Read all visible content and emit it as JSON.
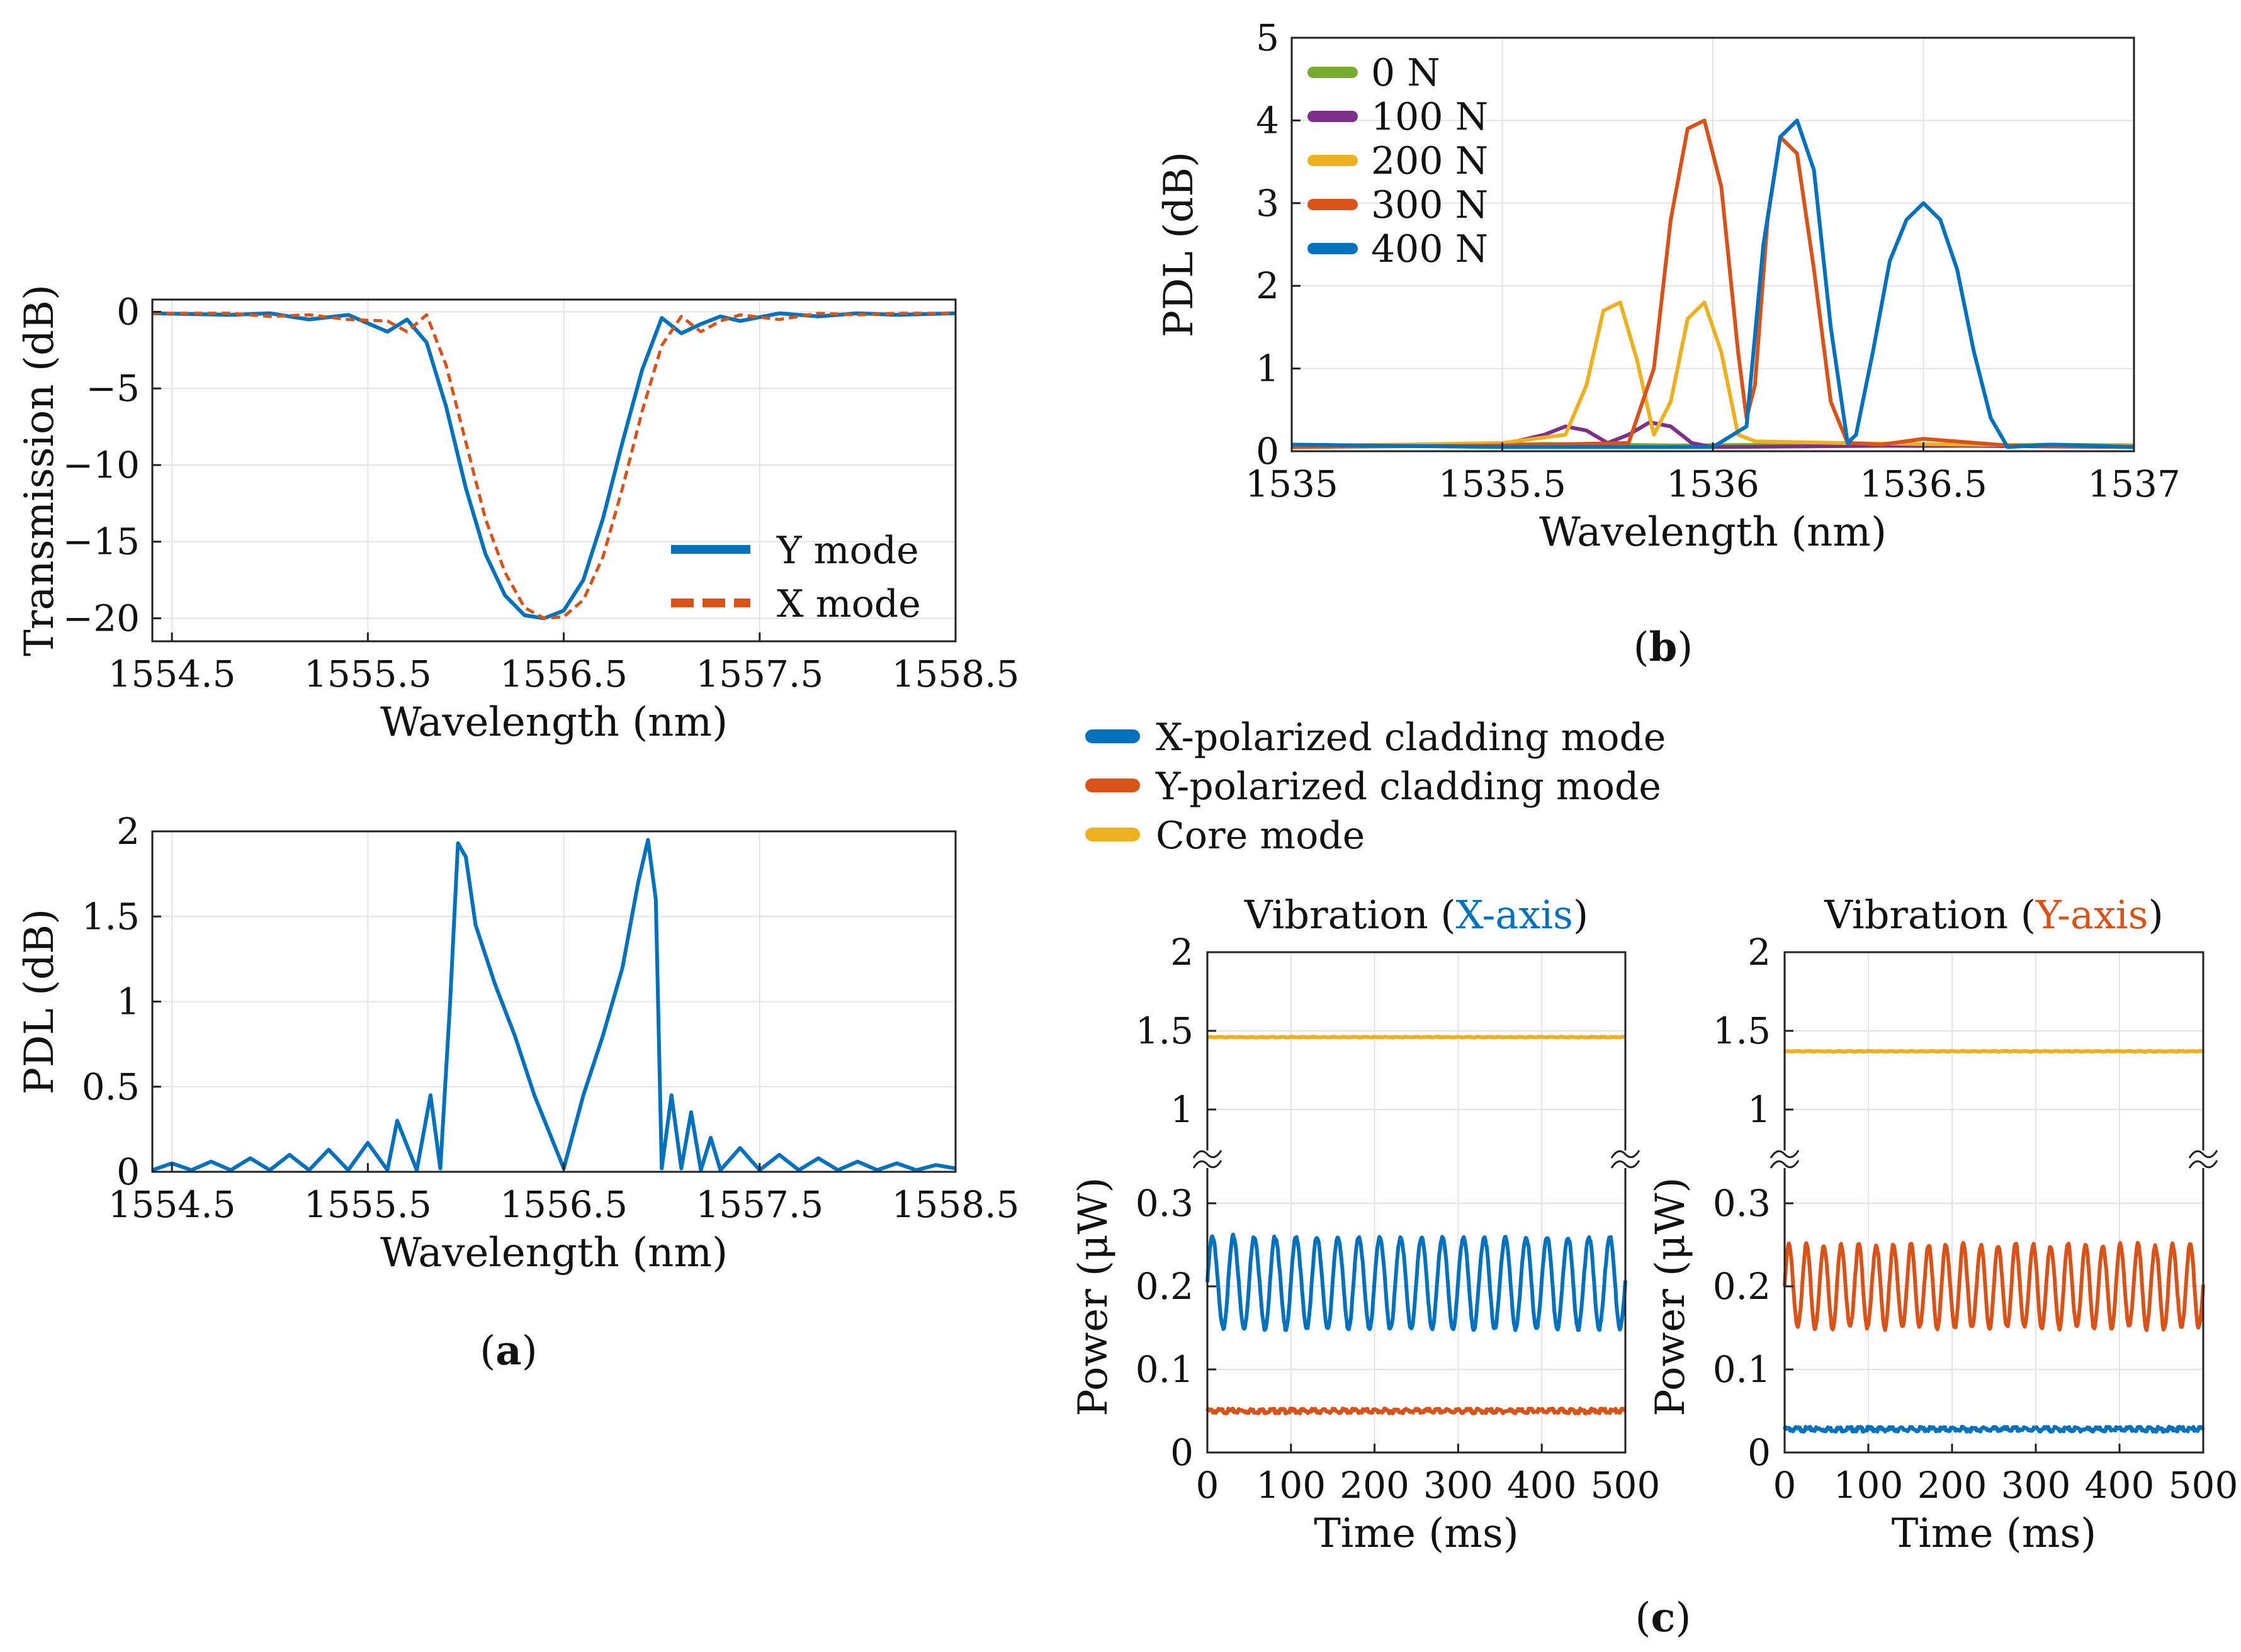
{
  "chart_data": [
    {
      "id": "a_top",
      "type": "line",
      "xlabel": "Wavelength (nm)",
      "ylabel": "Transmission (dB)",
      "xlim": [
        1554.4,
        1558.5
      ],
      "ylim": [
        -21.5,
        0.8
      ],
      "xticks": [
        1554.5,
        1555.5,
        1556.5,
        1557.5,
        1558.5
      ],
      "xtick_labels": [
        "1554.5",
        "1555.5",
        "1556.5",
        "1557.5",
        "1558.5"
      ],
      "yticks": [
        0,
        -5,
        -10,
        -15,
        -20
      ],
      "ytick_labels": [
        "0",
        "−5",
        "−10",
        "−15",
        "−20"
      ],
      "grid": true,
      "legend": "bottom-right",
      "series": [
        {
          "name": "Y mode",
          "color": "#0072BD",
          "dash": "solid",
          "x": [
            1554.4,
            1554.8,
            1555.0,
            1555.2,
            1555.4,
            1555.6,
            1555.7,
            1555.8,
            1555.9,
            1556.0,
            1556.1,
            1556.2,
            1556.3,
            1556.4,
            1556.5,
            1556.6,
            1556.7,
            1556.8,
            1556.9,
            1557.0,
            1557.1,
            1557.2,
            1557.3,
            1557.4,
            1557.6,
            1557.8,
            1558.0,
            1558.2,
            1558.5
          ],
          "y": [
            -0.1,
            -0.2,
            -0.1,
            -0.5,
            -0.2,
            -1.3,
            -0.5,
            -2.0,
            -6.2,
            -11.5,
            -15.8,
            -18.5,
            -19.8,
            -20.0,
            -19.5,
            -17.5,
            -13.5,
            -8.5,
            -3.8,
            -0.4,
            -1.4,
            -0.8,
            -0.3,
            -0.6,
            -0.1,
            -0.3,
            -0.1,
            -0.2,
            -0.1
          ]
        },
        {
          "name": "X mode",
          "color": "#D95319",
          "dash": "dashed",
          "x": [
            1554.4,
            1554.8,
            1555.0,
            1555.2,
            1555.4,
            1555.6,
            1555.7,
            1555.8,
            1555.9,
            1556.0,
            1556.1,
            1556.2,
            1556.3,
            1556.4,
            1556.5,
            1556.6,
            1556.7,
            1556.8,
            1556.9,
            1557.0,
            1557.1,
            1557.2,
            1557.3,
            1557.4,
            1557.6,
            1557.8,
            1558.0,
            1558.2,
            1558.5
          ],
          "y": [
            -0.1,
            -0.1,
            -0.3,
            -0.2,
            -0.5,
            -0.6,
            -1.3,
            -0.2,
            -3.5,
            -8.5,
            -13.5,
            -17.0,
            -19.3,
            -20.0,
            -19.9,
            -18.8,
            -16.0,
            -11.5,
            -6.5,
            -2.2,
            -0.3,
            -1.3,
            -0.6,
            -0.2,
            -0.5,
            -0.1,
            -0.2,
            -0.1,
            -0.1
          ]
        }
      ]
    },
    {
      "id": "a_bottom",
      "type": "line",
      "xlabel": "Wavelength (nm)",
      "ylabel": "PDL (dB)",
      "xlim": [
        1554.4,
        1558.5
      ],
      "ylim": [
        0,
        2
      ],
      "xticks": [
        1554.5,
        1555.5,
        1556.5,
        1557.5,
        1558.5
      ],
      "xtick_labels": [
        "1554.5",
        "1555.5",
        "1556.5",
        "1557.5",
        "1558.5"
      ],
      "yticks": [
        0,
        0.5,
        1,
        1.5,
        2
      ],
      "ytick_labels": [
        "0",
        "0.5",
        "1",
        "1.5",
        "2"
      ],
      "grid": true,
      "series": [
        {
          "name": "",
          "color": "#0072BD",
          "dash": "solid",
          "x": [
            1554.4,
            1554.5,
            1554.6,
            1554.7,
            1554.8,
            1554.9,
            1555.0,
            1555.1,
            1555.2,
            1555.3,
            1555.4,
            1555.5,
            1555.6,
            1555.65,
            1555.75,
            1555.82,
            1555.87,
            1555.92,
            1555.96,
            1556.0,
            1556.05,
            1556.15,
            1556.25,
            1556.35,
            1556.5,
            1556.6,
            1556.7,
            1556.8,
            1556.88,
            1556.93,
            1556.97,
            1557.0,
            1557.05,
            1557.1,
            1557.15,
            1557.2,
            1557.25,
            1557.3,
            1557.4,
            1557.5,
            1557.6,
            1557.7,
            1557.8,
            1557.9,
            1558.0,
            1558.1,
            1558.2,
            1558.3,
            1558.4,
            1558.5
          ],
          "y": [
            0.01,
            0.05,
            0.01,
            0.06,
            0.01,
            0.08,
            0.01,
            0.1,
            0.01,
            0.13,
            0.01,
            0.17,
            0.01,
            0.3,
            0.01,
            0.45,
            0.02,
            1.0,
            1.93,
            1.85,
            1.45,
            1.1,
            0.8,
            0.45,
            0.02,
            0.45,
            0.8,
            1.2,
            1.7,
            1.95,
            1.6,
            0.02,
            0.45,
            0.02,
            0.35,
            0.01,
            0.2,
            0.01,
            0.14,
            0.01,
            0.1,
            0.01,
            0.08,
            0.01,
            0.06,
            0.01,
            0.05,
            0.01,
            0.04,
            0.02
          ]
        }
      ]
    },
    {
      "id": "b",
      "type": "line",
      "xlabel": "Wavelength (nm)",
      "ylabel": "PDL (dB)",
      "xlim": [
        1535,
        1537
      ],
      "ylim": [
        0,
        5
      ],
      "xticks": [
        1535,
        1535.5,
        1536,
        1536.5,
        1537
      ],
      "xtick_labels": [
        "1535",
        "1535.5",
        "1536",
        "1536.5",
        "1537"
      ],
      "yticks": [
        0,
        1,
        2,
        3,
        4,
        5
      ],
      "ytick_labels": [
        "0",
        "1",
        "2",
        "3",
        "4",
        "5"
      ],
      "grid": true,
      "legend": "top-left",
      "series": [
        {
          "name": "0 N",
          "color": "#77AC30",
          "x": [
            1535,
            1535.3,
            1535.6,
            1535.9,
            1536.2,
            1536.5,
            1536.8,
            1537
          ],
          "y": [
            0.08,
            0.06,
            0.09,
            0.07,
            0.08,
            0.06,
            0.08,
            0.07
          ]
        },
        {
          "name": "100 N",
          "color": "#7E2F8E",
          "x": [
            1535,
            1535.5,
            1535.6,
            1535.65,
            1535.7,
            1535.75,
            1535.8,
            1535.85,
            1535.9,
            1535.95,
            1536,
            1536.5,
            1537
          ],
          "y": [
            0.05,
            0.08,
            0.2,
            0.3,
            0.25,
            0.1,
            0.2,
            0.35,
            0.3,
            0.1,
            0.05,
            0.07,
            0.05
          ]
        },
        {
          "name": "200 N",
          "color": "#EDB120",
          "x": [
            1535,
            1535.5,
            1535.65,
            1535.7,
            1535.74,
            1535.78,
            1535.82,
            1535.86,
            1535.9,
            1535.94,
            1535.98,
            1536.02,
            1536.06,
            1536.1,
            1536.3,
            1536.6,
            1537
          ],
          "y": [
            0.06,
            0.1,
            0.2,
            0.8,
            1.7,
            1.8,
            1.1,
            0.2,
            0.6,
            1.6,
            1.8,
            1.2,
            0.2,
            0.12,
            0.1,
            0.08,
            0.06
          ]
        },
        {
          "name": "300 N",
          "color": "#D95319",
          "x": [
            1535,
            1535.5,
            1535.8,
            1535.86,
            1535.9,
            1535.94,
            1535.98,
            1536.02,
            1536.06,
            1536.08,
            1536.1,
            1536.13,
            1536.16,
            1536.2,
            1536.24,
            1536.28,
            1536.32,
            1536.4,
            1536.5,
            1536.7,
            1537
          ],
          "y": [
            0.05,
            0.07,
            0.1,
            1.0,
            2.8,
            3.9,
            4.0,
            3.2,
            1.2,
            0.4,
            0.8,
            2.8,
            3.8,
            3.6,
            2.2,
            0.6,
            0.1,
            0.08,
            0.15,
            0.07,
            0.05
          ]
        },
        {
          "name": "400 N",
          "color": "#0072BD",
          "x": [
            1535,
            1535.5,
            1536,
            1536.08,
            1536.12,
            1536.16,
            1536.2,
            1536.24,
            1536.28,
            1536.32,
            1536.34,
            1536.38,
            1536.42,
            1536.46,
            1536.5,
            1536.54,
            1536.58,
            1536.62,
            1536.66,
            1536.7,
            1536.8,
            1537
          ],
          "y": [
            0.08,
            0.05,
            0.05,
            0.3,
            2.5,
            3.8,
            4.0,
            3.4,
            1.5,
            0.1,
            0.2,
            1.2,
            2.3,
            2.8,
            3.0,
            2.8,
            2.2,
            1.2,
            0.4,
            0.05,
            0.08,
            0.05
          ]
        }
      ]
    },
    {
      "id": "c_left",
      "type": "line",
      "title_parts": [
        "Vibration (",
        "X-axis",
        ")"
      ],
      "xlabel": "Time (ms)",
      "ylabel": "Power (μW)",
      "xlim": [
        0,
        500
      ],
      "ylim": [
        0,
        2
      ],
      "axis_break": [
        0.3,
        1
      ],
      "xticks": [
        0,
        100,
        200,
        300,
        400,
        500
      ],
      "xtick_labels": [
        "0",
        "100",
        "200",
        "300",
        "400",
        "500"
      ],
      "yticks": [
        0,
        0.1,
        0.2,
        0.3,
        1,
        1.5,
        2
      ],
      "ytick_labels": [
        "0",
        "0.1",
        "0.2",
        "0.3",
        "1",
        "1.5",
        "2"
      ],
      "grid": true,
      "series": [
        {
          "name": "X-polarized cladding mode",
          "color": "#0072BD",
          "mean": 0.205,
          "amplitude": 0.055,
          "cycles": 20
        },
        {
          "name": "Y-polarized cladding mode",
          "color": "#D95319",
          "mean": 0.05,
          "amplitude": 0.0,
          "cycles": 0
        },
        {
          "name": "Core mode",
          "color": "#EDB120",
          "mean": 1.46,
          "amplitude": 0.0,
          "cycles": 0
        }
      ]
    },
    {
      "id": "c_right",
      "type": "line",
      "title_parts": [
        "Vibration (",
        "Y-axis",
        ")"
      ],
      "xlabel": "Time (ms)",
      "ylabel": "Power (μW)",
      "xlim": [
        0,
        500
      ],
      "ylim": [
        0,
        2
      ],
      "axis_break": [
        0.3,
        1
      ],
      "xticks": [
        0,
        100,
        200,
        300,
        400,
        500
      ],
      "xtick_labels": [
        "0",
        "100",
        "200",
        "300",
        "400",
        "500"
      ],
      "yticks": [
        0,
        0.1,
        0.2,
        0.3,
        1,
        1.5,
        2
      ],
      "ytick_labels": [
        "0",
        "0.1",
        "0.2",
        "0.3",
        "1",
        "1.5",
        "2"
      ],
      "grid": true,
      "series": [
        {
          "name": "X-polarized cladding mode",
          "color": "#0072BD",
          "mean": 0.028,
          "amplitude": 0.0,
          "cycles": 0
        },
        {
          "name": "Y-polarized cladding mode",
          "color": "#D95319",
          "mean": 0.2,
          "amplitude": 0.05,
          "cycles": 24
        },
        {
          "name": "Core mode",
          "color": "#EDB120",
          "mean": 1.37,
          "amplitude": 0.0,
          "cycles": 0
        }
      ]
    }
  ],
  "legend_c": [
    {
      "label": "X-polarized cladding mode",
      "color": "#0072BD"
    },
    {
      "label": "Y-polarized cladding mode",
      "color": "#D95319"
    },
    {
      "label": "Core mode",
      "color": "#EDB120"
    }
  ],
  "panel_labels": {
    "a": "a",
    "b": "b",
    "c": "c"
  }
}
